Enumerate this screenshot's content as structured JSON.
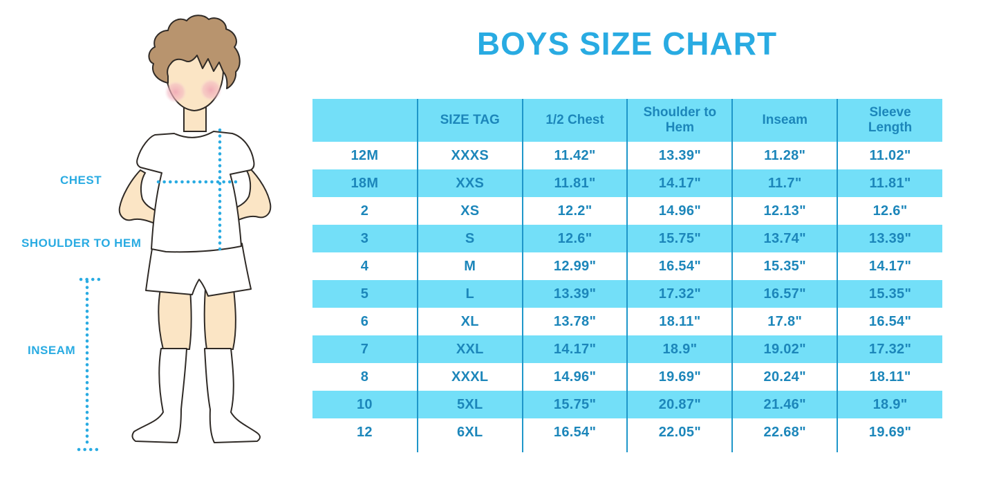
{
  "title": "BOYS SIZE CHART",
  "colors": {
    "accent_blue": "#29ABE2",
    "table_fill": "#73DFF8",
    "table_text": "#1C86BA",
    "divider": "#1E96C9",
    "skin": "#FBE5C5",
    "hair": "#B8946E",
    "outline": "#2F2A26"
  },
  "figure": {
    "labels": {
      "chest": "CHEST",
      "shoulder_to_hem": "SHOULDER TO HEM",
      "inseam": "INSEAM"
    }
  },
  "chart_data": {
    "type": "table",
    "title": "BOYS SIZE CHART",
    "columns": [
      "",
      "SIZE TAG",
      "1/2 Chest",
      "Shoulder to Hem",
      "Inseam",
      "Sleeve Length"
    ],
    "rows": [
      [
        "12M",
        "XXXS",
        "11.42\"",
        "13.39\"",
        "11.28\"",
        "11.02\""
      ],
      [
        "18M",
        "XXS",
        "11.81\"",
        "14.17\"",
        "11.7\"",
        "11.81\""
      ],
      [
        "2",
        "XS",
        "12.2\"",
        "14.96\"",
        "12.13\"",
        "12.6\""
      ],
      [
        "3",
        "S",
        "12.6\"",
        "15.75\"",
        "13.74\"",
        "13.39\""
      ],
      [
        "4",
        "M",
        "12.99\"",
        "16.54\"",
        "15.35\"",
        "14.17\""
      ],
      [
        "5",
        "L",
        "13.39\"",
        "17.32\"",
        "16.57\"",
        "15.35\""
      ],
      [
        "6",
        "XL",
        "13.78\"",
        "18.11\"",
        "17.8\"",
        "16.54\""
      ],
      [
        "7",
        "XXL",
        "14.17\"",
        "18.9\"",
        "19.02\"",
        "17.32\""
      ],
      [
        "8",
        "XXXL",
        "14.96\"",
        "19.69\"",
        "20.24\"",
        "18.11\""
      ],
      [
        "10",
        "5XL",
        "15.75\"",
        "20.87\"",
        "21.46\"",
        "18.9\""
      ],
      [
        "12",
        "6XL",
        "16.54\"",
        "22.05\"",
        "22.68\"",
        "19.69\""
      ]
    ],
    "striping": "rows alternate white / light-blue starting with white",
    "grid": "vertical column dividers only, no outer border",
    "legend_position": "none"
  }
}
